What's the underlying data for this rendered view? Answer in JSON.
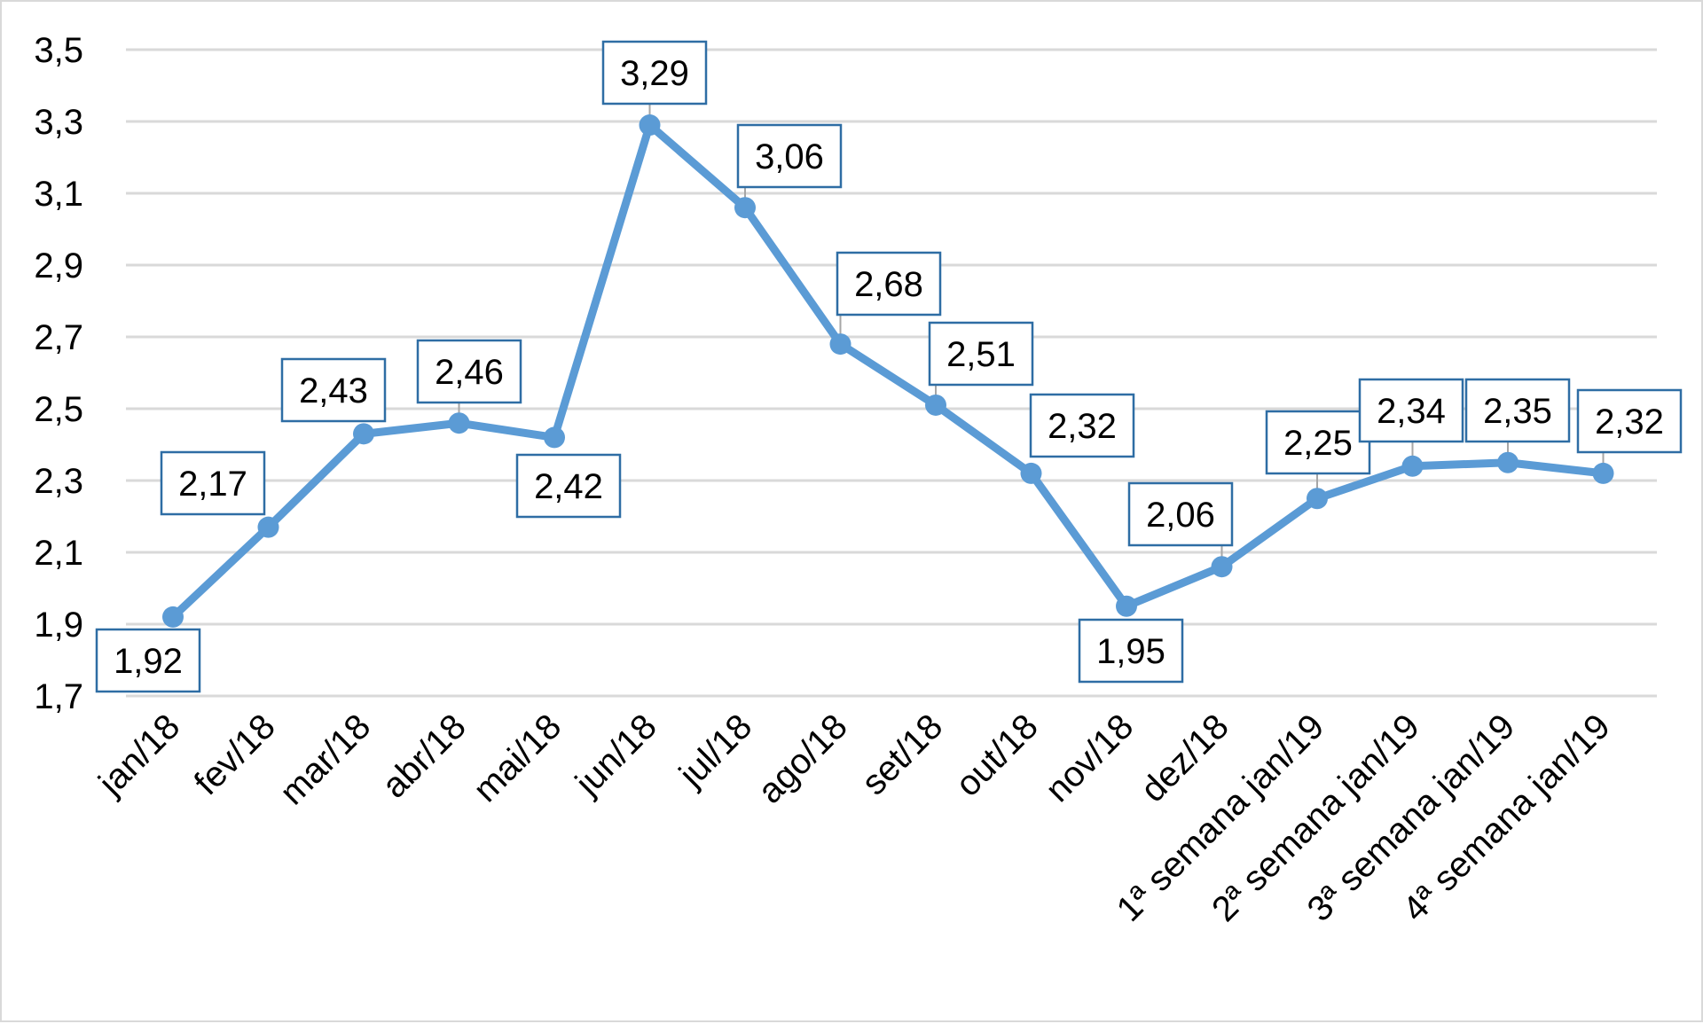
{
  "chart_data": {
    "type": "line",
    "title": "",
    "xlabel": "",
    "ylabel": "",
    "ylim": [
      1.7,
      3.5
    ],
    "yticks": [
      "1,7",
      "1,9",
      "2,1",
      "2,3",
      "2,5",
      "2,7",
      "2,9",
      "3,1",
      "3,3",
      "3,5"
    ],
    "grid": true,
    "legend": "none",
    "categories": [
      "jan/18",
      "fev/18",
      "mar/18",
      "abr/18",
      "mai/18",
      "jun/18",
      "jul/18",
      "ago/18",
      "set/18",
      "out/18",
      "nov/18",
      "dez/18",
      "1ª semana jan/19",
      "2ª semana jan/19",
      "3ª semana jan/19",
      "4ª semana jan/19"
    ],
    "series": [
      {
        "values": [
          1.92,
          2.17,
          2.43,
          2.46,
          2.42,
          3.29,
          3.06,
          2.68,
          2.51,
          2.32,
          1.95,
          2.06,
          2.25,
          2.34,
          2.35,
          2.32
        ],
        "labels": [
          "1,92",
          "2,17",
          "2,43",
          "2,46",
          "2,42",
          "3,29",
          "3,06",
          "2,68",
          "2,51",
          "2,32",
          "1,95",
          "2,06",
          "2,25",
          "2,34",
          "2,35",
          "2,32"
        ]
      }
    ],
    "colors": {
      "line": "#5b9bd5",
      "grid": "#d9d9d9",
      "label_border": "#2e6da4",
      "leader": "#a6a6a6"
    }
  }
}
